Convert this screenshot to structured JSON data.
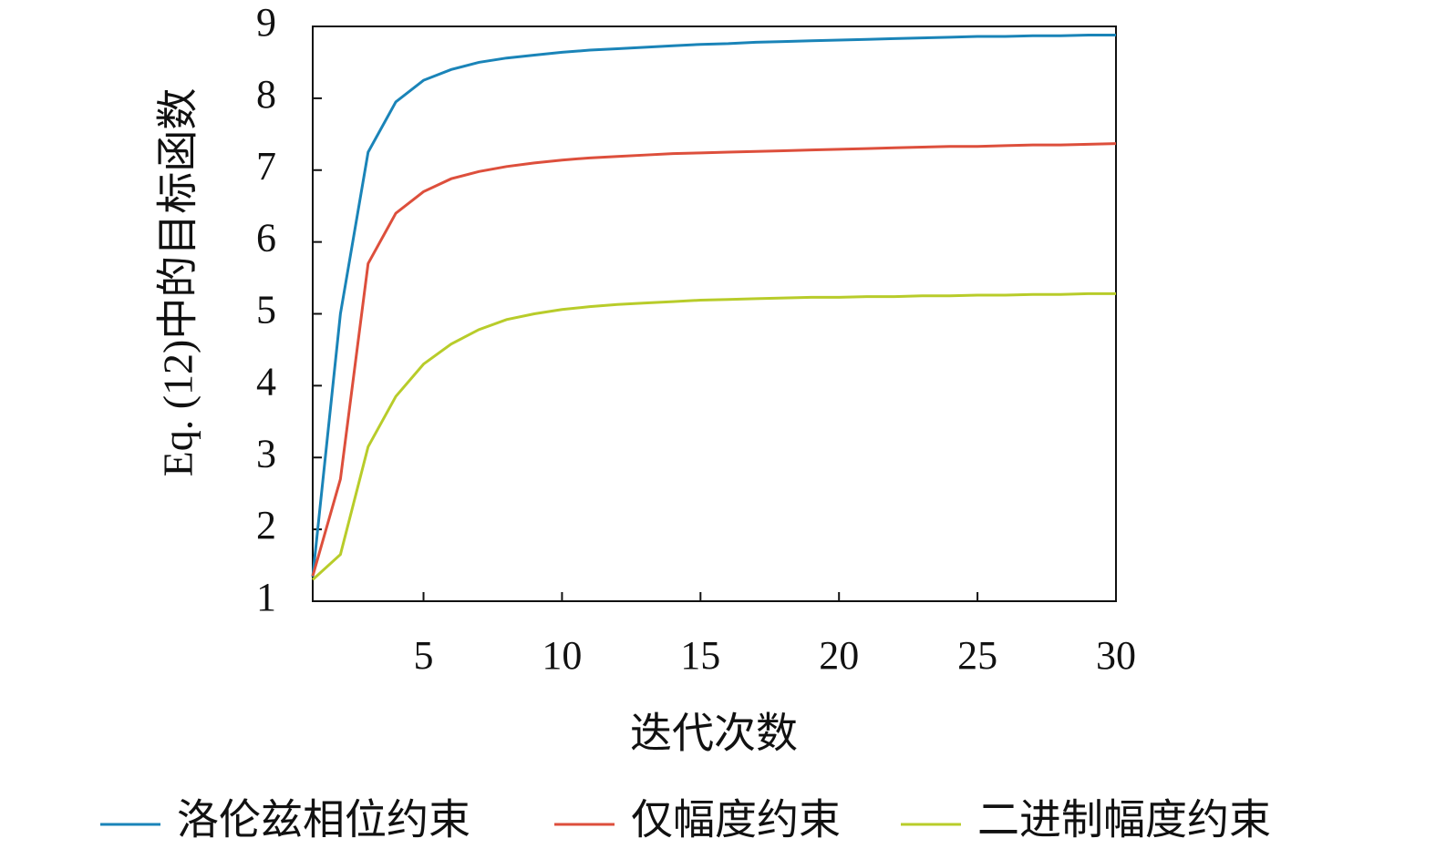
{
  "chart_data": {
    "type": "line",
    "x": [
      1,
      2,
      3,
      4,
      5,
      6,
      7,
      8,
      9,
      10,
      11,
      12,
      13,
      14,
      15,
      16,
      17,
      18,
      19,
      20,
      21,
      22,
      23,
      24,
      25,
      26,
      27,
      28,
      29,
      30
    ],
    "xlabel": "迭代次数",
    "ylabel": "Eq. (12)中的目标函数",
    "xlim": [
      1,
      30
    ],
    "ylim": [
      1,
      9
    ],
    "xticks": [
      5,
      10,
      15,
      20,
      25,
      30
    ],
    "yticks": [
      1,
      2,
      3,
      4,
      5,
      6,
      7,
      8,
      9
    ],
    "legend": "bottom",
    "series": [
      {
        "name": "洛伦兹相位约束",
        "color": "#1a84b8",
        "values": [
          1.34,
          5.0,
          7.25,
          7.95,
          8.25,
          8.4,
          8.5,
          8.56,
          8.6,
          8.64,
          8.67,
          8.69,
          8.71,
          8.73,
          8.75,
          8.76,
          8.78,
          8.79,
          8.8,
          8.81,
          8.82,
          8.83,
          8.84,
          8.85,
          8.86,
          8.86,
          8.87,
          8.87,
          8.88,
          8.88
        ]
      },
      {
        "name": "仅幅度约束",
        "color": "#dd4f3c",
        "values": [
          1.35,
          2.7,
          5.7,
          6.4,
          6.7,
          6.88,
          6.98,
          7.05,
          7.1,
          7.14,
          7.17,
          7.19,
          7.21,
          7.23,
          7.24,
          7.25,
          7.26,
          7.27,
          7.28,
          7.29,
          7.3,
          7.31,
          7.32,
          7.33,
          7.33,
          7.34,
          7.35,
          7.35,
          7.36,
          7.37
        ]
      },
      {
        "name": "二进制幅度约束",
        "color": "#b8cc2a",
        "values": [
          1.3,
          1.65,
          3.15,
          3.85,
          4.3,
          4.58,
          4.78,
          4.92,
          5.0,
          5.06,
          5.1,
          5.13,
          5.15,
          5.17,
          5.19,
          5.2,
          5.21,
          5.22,
          5.23,
          5.23,
          5.24,
          5.24,
          5.25,
          5.25,
          5.26,
          5.26,
          5.27,
          5.27,
          5.28,
          5.28
        ]
      }
    ]
  }
}
